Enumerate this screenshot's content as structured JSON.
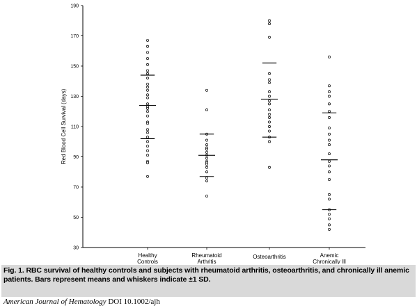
{
  "chart_data": {
    "type": "scatter",
    "ylabel": "Red Blood Cell Survival (days)",
    "xlabel": "",
    "ylim": [
      30,
      190
    ],
    "yticks": [
      30,
      50,
      70,
      90,
      110,
      130,
      150,
      170,
      190
    ],
    "categories": [
      {
        "lines": [
          "Healthy",
          "Controls"
        ]
      },
      {
        "lines": [
          "Rheumatoid",
          "Arthritis"
        ]
      },
      {
        "lines": [
          "Osteoarthritis"
        ]
      },
      {
        "lines": [
          "Anemic",
          "Chronically Ill"
        ]
      }
    ],
    "series": [
      {
        "values": [
          167,
          163,
          159,
          155,
          151,
          147,
          145,
          142,
          138,
          136,
          134,
          131,
          129,
          125,
          123,
          122,
          120,
          117,
          113,
          112,
          108,
          106,
          103,
          100,
          97,
          94,
          91,
          87,
          86,
          77
        ],
        "mean": 124,
        "sd_upper": 144,
        "sd_lower": 102
      },
      {
        "values": [
          134,
          121,
          105,
          101,
          98,
          96,
          95,
          93,
          91,
          89,
          87,
          86,
          85,
          83,
          80,
          76,
          74,
          64
        ],
        "mean": 91,
        "sd_upper": 105,
        "sd_lower": 77
      },
      {
        "values": [
          180,
          178,
          169,
          145,
          141,
          139,
          133,
          130,
          127,
          125,
          121,
          118,
          116,
          113,
          110,
          107,
          103,
          100,
          83
        ],
        "mean": 128,
        "sd_upper": 152,
        "sd_lower": 103
      },
      {
        "values": [
          156,
          137,
          133,
          130,
          125,
          120,
          116,
          109,
          105,
          101,
          98,
          92,
          87,
          84,
          80,
          75,
          65,
          62,
          55,
          52,
          49,
          45,
          42
        ],
        "mean": 88,
        "sd_upper": 119,
        "sd_lower": 55
      }
    ]
  },
  "caption": {
    "text": "Fig. 1.   RBC survival of healthy controls and subjects with rheumatoid arthritis, osteoarthritis, and chronically ill anemic patients. Bars represent means and whiskers indicate ±1 SD."
  },
  "journal": {
    "name": "American Journal of Hematology",
    "doi": "DOI 10.1002/ajh"
  }
}
